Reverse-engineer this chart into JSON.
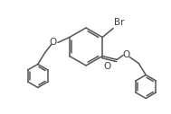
{
  "bg_color": "#ffffff",
  "line_color": "#555555",
  "line_width": 1.1,
  "text_color": "#404040",
  "br_label": "Br",
  "o_labels": [
    "O",
    "O",
    "O"
  ]
}
